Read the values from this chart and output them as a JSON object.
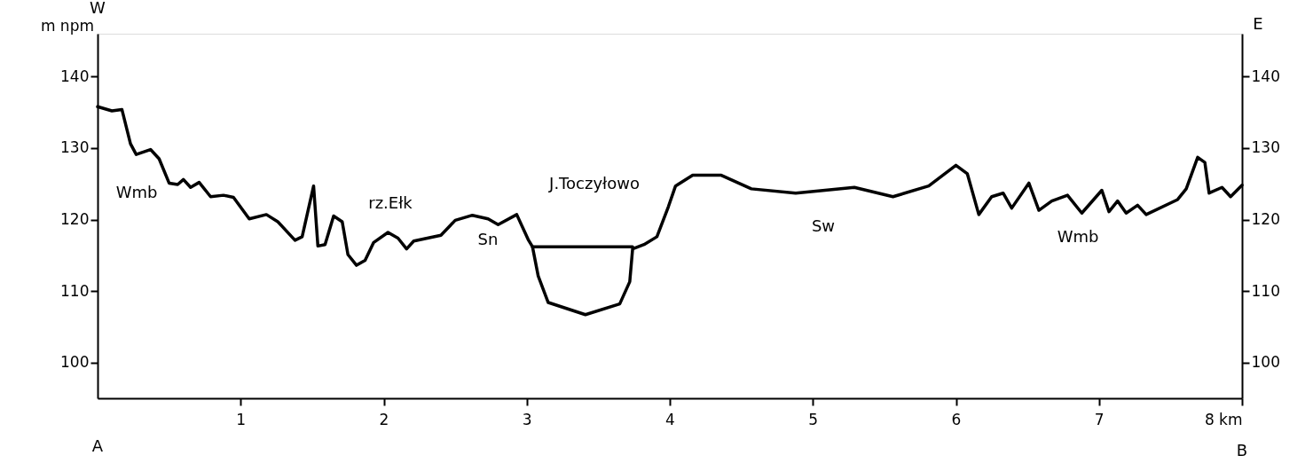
{
  "chart_data": {
    "type": "line",
    "ylabel": "m npm",
    "xlim": [
      0,
      8
    ],
    "xticks": [
      {
        "value": 1,
        "label": "1"
      },
      {
        "value": 2,
        "label": "2"
      },
      {
        "value": 3,
        "label": "3"
      },
      {
        "value": 4,
        "label": "4"
      },
      {
        "value": 5,
        "label": "5"
      },
      {
        "value": 6,
        "label": "6"
      },
      {
        "value": 7,
        "label": "7"
      },
      {
        "value": 8,
        "label": "8 km"
      }
    ],
    "ylim": [
      95,
      146
    ],
    "yticks": [
      100,
      110,
      120,
      130,
      140
    ],
    "y2lim": [
      95,
      146
    ],
    "y2ticks": [
      100,
      110,
      120,
      130,
      140
    ],
    "grid": false,
    "marker": "none",
    "line_style": "solid",
    "series": [
      {
        "color": "#000000",
        "x": [
          0,
          0.1,
          0.17,
          0.23,
          0.27,
          0.37,
          0.43,
          0.5,
          0.56,
          0.6,
          0.65,
          0.71,
          0.79,
          0.88,
          0.95,
          1.06,
          1.18,
          1.26,
          1.38,
          1.43,
          1.51,
          1.54,
          1.59,
          1.65,
          1.71,
          1.75,
          1.81,
          1.87,
          1.93,
          2.03,
          2.1,
          2.16,
          2.21,
          2.4,
          2.5,
          2.62,
          2.73,
          2.8,
          2.93,
          3.01,
          3.04,
          3.08,
          3.15,
          3.41,
          3.65,
          3.72,
          3.74,
          3.82,
          3.91,
          3.99,
          4.04,
          4.16,
          4.36,
          4.57,
          4.88,
          5.29,
          5.56,
          5.81,
          6.0,
          6.08,
          6.16,
          6.25,
          6.33,
          6.39,
          6.51,
          6.58,
          6.67,
          6.78,
          6.88,
          7.02,
          7.07,
          7.13,
          7.19,
          7.27,
          7.33,
          7.55,
          7.61,
          7.69,
          7.74,
          7.77,
          7.86,
          7.92,
          8.0
        ],
        "values": [
          135.8,
          135.2,
          135.4,
          130.6,
          129.1,
          129.8,
          128.5,
          125.1,
          124.9,
          125.6,
          124.5,
          125.2,
          123.2,
          123.4,
          123.1,
          120.1,
          120.7,
          119.7,
          117.1,
          117.6,
          124.7,
          116.3,
          116.5,
          120.5,
          119.7,
          115.1,
          113.6,
          114.3,
          116.8,
          118.2,
          117.4,
          115.9,
          117.0,
          117.8,
          119.9,
          120.6,
          120.1,
          119.3,
          120.7,
          117.2,
          116.2,
          112.1,
          108.4,
          106.7,
          108.2,
          111.3,
          115.9,
          116.5,
          117.6,
          121.8,
          124.7,
          126.2,
          126.2,
          124.3,
          123.7,
          124.5,
          123.2,
          124.7,
          127.6,
          126.4,
          120.7,
          123.2,
          123.7,
          121.6,
          125.1,
          121.3,
          122.6,
          123.4,
          120.9,
          124.1,
          121.1,
          122.6,
          120.9,
          122.0,
          120.7,
          122.8,
          124.3,
          128.7,
          128.0,
          123.7,
          124.5,
          123.2,
          124.8
        ]
      },
      {
        "color": "#000000",
        "x": [
          3.04,
          3.74
        ],
        "values": [
          116.2,
          116.2
        ]
      }
    ],
    "annotations": [
      "W",
      "E",
      "A",
      "B",
      "Wmb",
      "rz.Ełk",
      "Sn",
      "J.Toczyłowo",
      "Sw",
      "Wmb"
    ]
  }
}
